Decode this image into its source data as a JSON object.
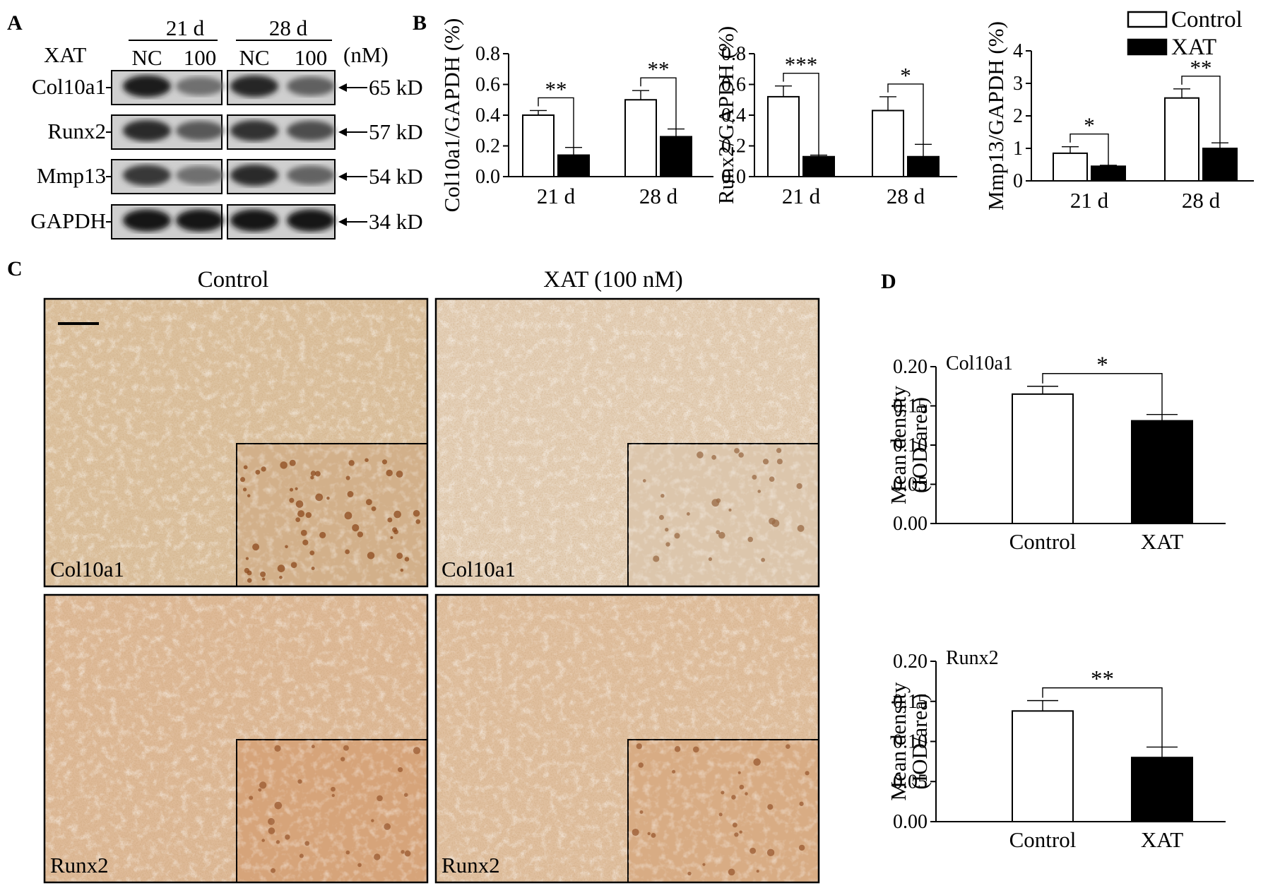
{
  "panel_labels": {
    "a": "A",
    "b": "B",
    "c": "C",
    "d": "D"
  },
  "blot": {
    "treatment_label": "XAT",
    "unit_label": "(nM)",
    "timepoints": [
      "21 d",
      "28 d"
    ],
    "lanes": [
      "NC",
      "100",
      "NC",
      "100"
    ],
    "rows": [
      {
        "name": "Col10a1",
        "kd": "65 kD",
        "intensity": [
          0.92,
          0.55,
          0.88,
          0.62
        ]
      },
      {
        "name": "Runx2",
        "kd": "57 kD",
        "intensity": [
          0.85,
          0.65,
          0.82,
          0.7
        ]
      },
      {
        "name": "Mmp13",
        "kd": "54 kD",
        "intensity": [
          0.8,
          0.55,
          0.85,
          0.6
        ]
      },
      {
        "name": "GAPDH",
        "kd": "34 kD",
        "intensity": [
          0.95,
          0.95,
          0.95,
          0.95
        ]
      }
    ]
  },
  "legend": {
    "items": [
      {
        "name": "Control",
        "fill": "#ffffff"
      },
      {
        "name": "XAT",
        "fill": "#000000"
      }
    ]
  },
  "ihc": {
    "col_headers": [
      "Control",
      "XAT (100 nM)"
    ],
    "tiles": [
      {
        "label": "Col10a1",
        "base": "#dcc2a0",
        "inset": "#d2b08a",
        "dots": "#8c4a1c"
      },
      {
        "label": "Col10a1",
        "base": "#e4d0b8",
        "inset": "#dcc6ac",
        "dots": "#9a6a44"
      },
      {
        "label": "Runx2",
        "base": "#deba98",
        "inset": "#d6a47a",
        "dots": "#9a5a30"
      },
      {
        "label": "Runx2",
        "base": "#e0c0a0",
        "inset": "#d8ac84",
        "dots": "#9a5a30"
      }
    ]
  },
  "chart_data": [
    {
      "type": "bar",
      "ylabel": "Col10a1/GAPDH (%)",
      "categories": [
        "21 d",
        "28 d"
      ],
      "series": [
        {
          "name": "Control",
          "values": [
            0.4,
            0.5
          ],
          "errors": [
            0.03,
            0.06
          ]
        },
        {
          "name": "XAT",
          "values": [
            0.14,
            0.26
          ],
          "errors": [
            0.05,
            0.05
          ]
        }
      ],
      "ylim": [
        0,
        0.8
      ],
      "yticks": [
        "0.0",
        "0.2",
        "0.4",
        "0.6",
        "0.8"
      ],
      "significance": [
        "**",
        "**"
      ]
    },
    {
      "type": "bar",
      "ylabel": "Runx2/GAPDH (%)",
      "categories": [
        "21 d",
        "28 d"
      ],
      "series": [
        {
          "name": "Control",
          "values": [
            0.52,
            0.43
          ],
          "errors": [
            0.07,
            0.09
          ]
        },
        {
          "name": "XAT",
          "values": [
            0.13,
            0.13
          ],
          "errors": [
            0.01,
            0.08
          ]
        }
      ],
      "ylim": [
        0,
        0.8
      ],
      "yticks": [
        "0.0",
        "0.2",
        "0.4",
        "0.6",
        "0.8"
      ],
      "significance": [
        "***",
        "*"
      ]
    },
    {
      "type": "bar",
      "ylabel": "Mmp13/GAPDH (%)",
      "categories": [
        "21 d",
        "28 d"
      ],
      "series": [
        {
          "name": "Control",
          "values": [
            0.85,
            2.55
          ],
          "errors": [
            0.2,
            0.28
          ]
        },
        {
          "name": "XAT",
          "values": [
            0.45,
            1.0
          ],
          "errors": [
            0.03,
            0.17
          ]
        }
      ],
      "ylim": [
        0,
        4
      ],
      "yticks": [
        "0",
        "1",
        "2",
        "3",
        "4"
      ],
      "significance": [
        "*",
        "**"
      ]
    },
    {
      "type": "bar",
      "title": "Col10a1",
      "ylabel": [
        "Mean density",
        "(IOD/area)"
      ],
      "categories": [
        "Control",
        "XAT"
      ],
      "values": [
        0.165,
        0.131
      ],
      "errors": [
        0.01,
        0.008
      ],
      "ylim": [
        0,
        0.2
      ],
      "yticks": [
        "0.00",
        "0.05",
        "0.10",
        "0.15",
        "0.20"
      ],
      "significance": "*"
    },
    {
      "type": "bar",
      "title": "Runx2",
      "ylabel": [
        "Mean density",
        "(IOD/area)"
      ],
      "categories": [
        "Control",
        "XAT"
      ],
      "values": [
        0.138,
        0.08
      ],
      "errors": [
        0.013,
        0.013
      ],
      "ylim": [
        0,
        0.2
      ],
      "yticks": [
        "0.00",
        "0.05",
        "0.10",
        "0.15",
        "0.20"
      ],
      "significance": "**"
    }
  ]
}
